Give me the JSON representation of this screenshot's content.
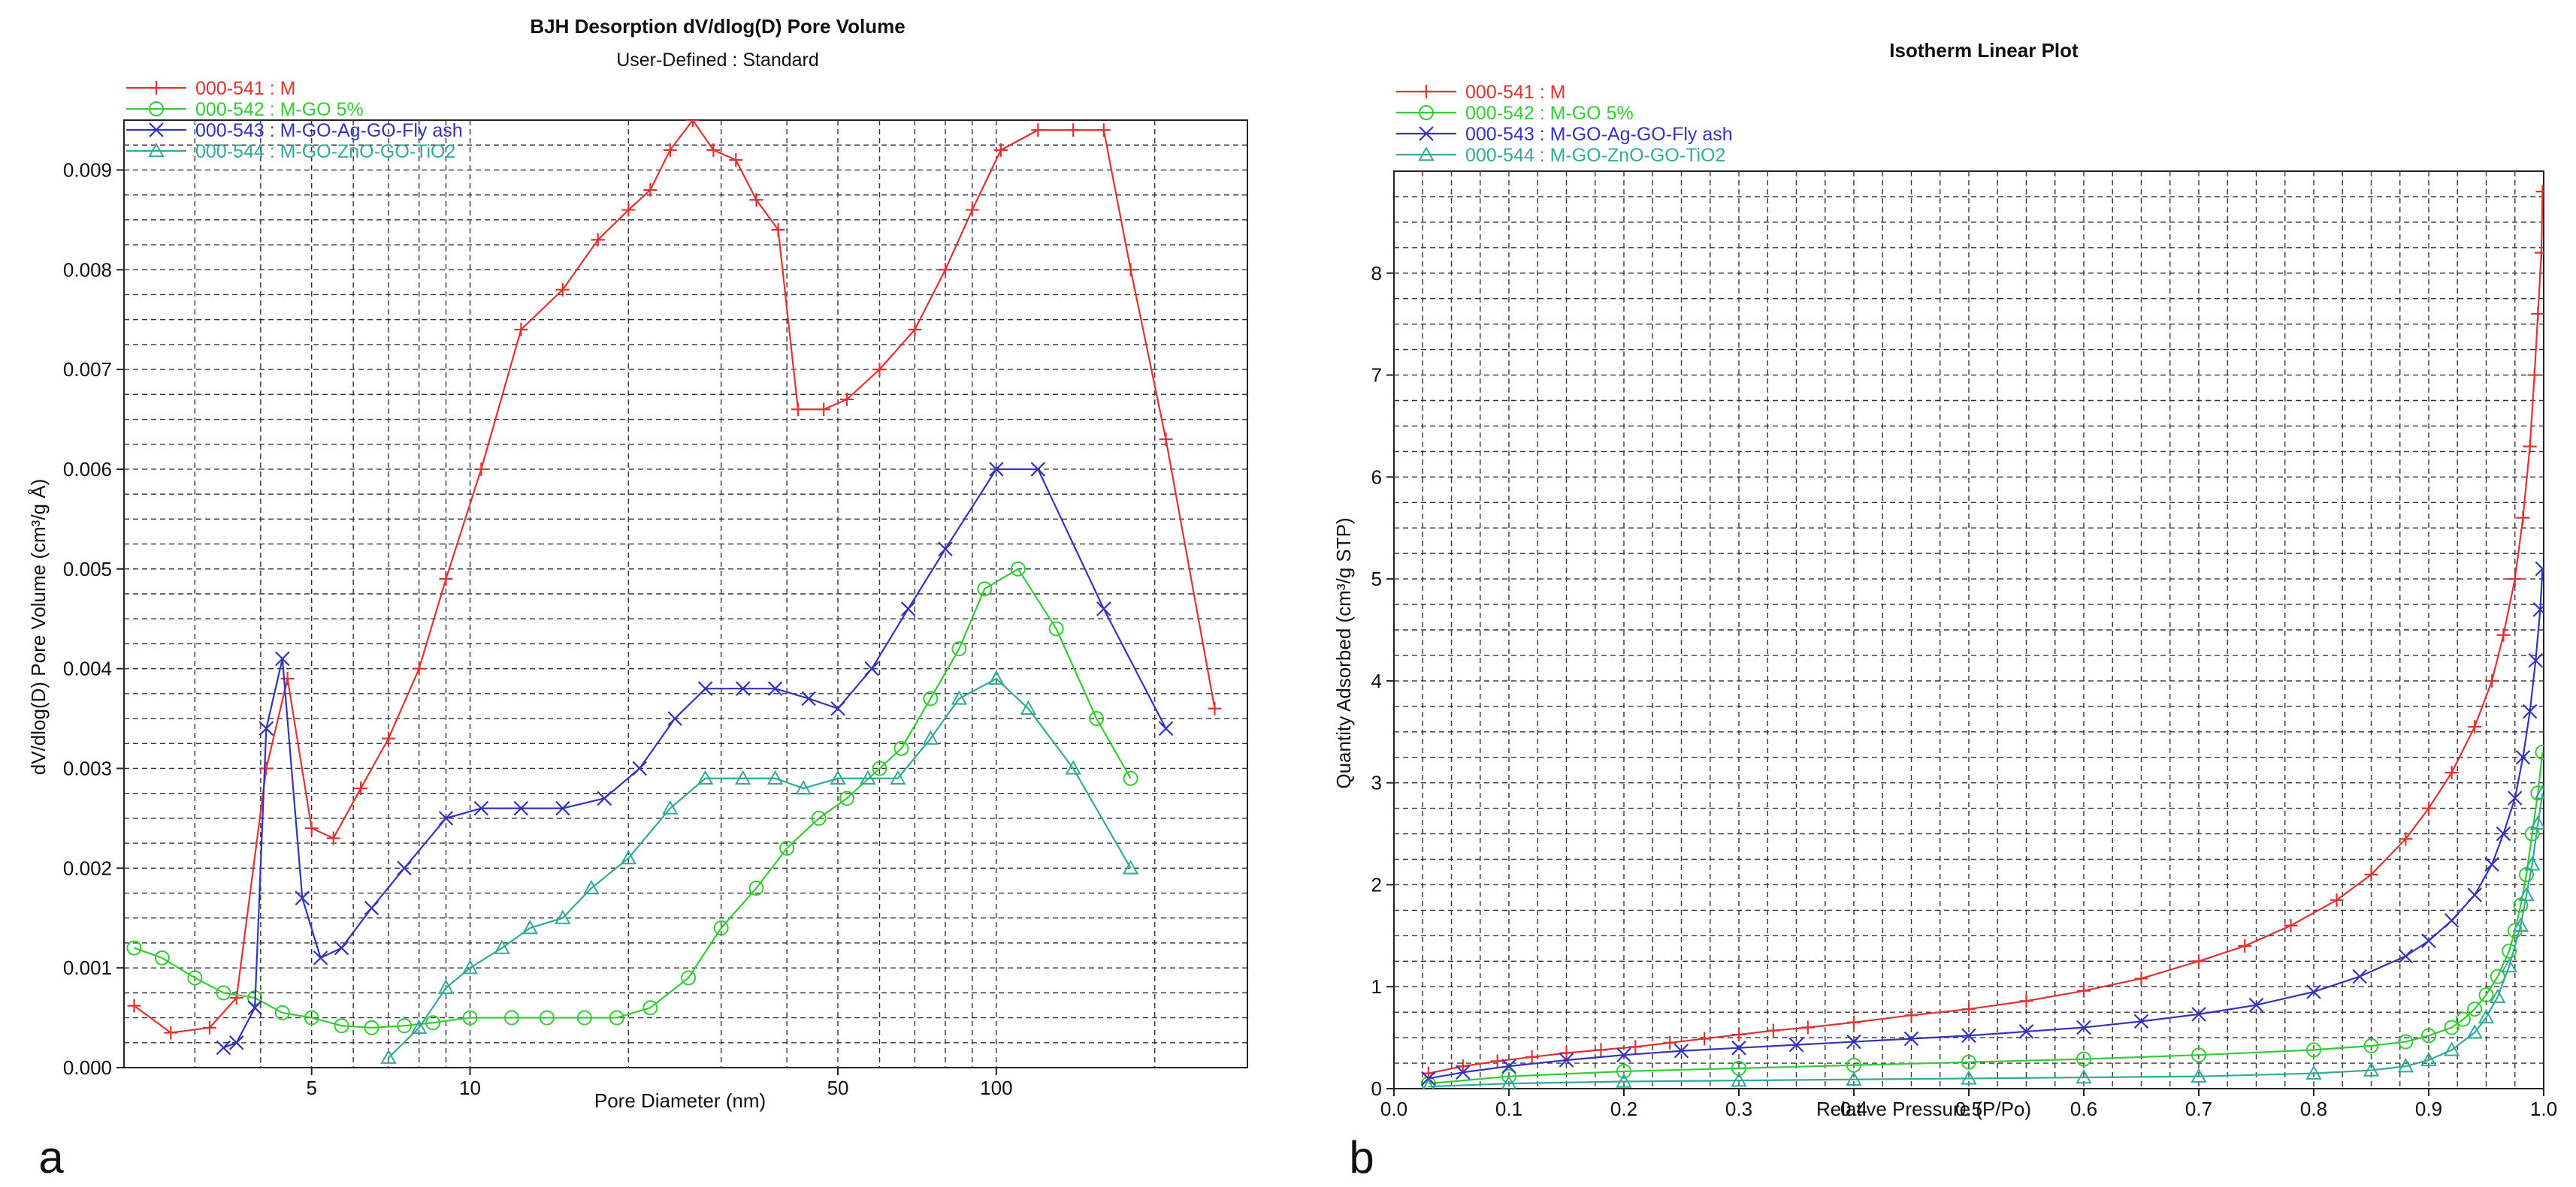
{
  "chart_data": [
    {
      "type": "line",
      "panel_label": "a",
      "title": "BJH Desorption dV/dlog(D) Pore Volume",
      "subtitle": "User-Defined : Standard",
      "xlabel": "Pore Diameter (nm)",
      "ylabel": "dV/dlog(D) Pore Volume (cm³/g Å)",
      "xscale": "log",
      "xlim": [
        2.2,
        300
      ],
      "ylim": [
        0,
        0.0095
      ],
      "x_ticks": [
        5,
        10,
        50,
        100
      ],
      "x_tick_labels": [
        "5",
        "10",
        "50",
        "100"
      ],
      "y_ticks": [
        0,
        0.001,
        0.002,
        0.003,
        0.004,
        0.005,
        0.006,
        0.007,
        0.008,
        0.009
      ],
      "y_tick_labels": [
        "0.000",
        "0.001",
        "0.002",
        "0.003",
        "0.004",
        "0.005",
        "0.006",
        "0.007",
        "0.008",
        "0.009"
      ],
      "grid": true,
      "legend_position": "top-left",
      "series": [
        {
          "name": "000-541 : M",
          "color": "#dd3333",
          "marker": "plus",
          "x": [
            2.3,
            2.7,
            3.2,
            3.6,
            4.1,
            4.5,
            5.0,
            5.5,
            6.2,
            7.0,
            8.0,
            9.0,
            10.5,
            12.5,
            15.0,
            17.5,
            20.0,
            22.0,
            24.0,
            26.5,
            29.0,
            32.0,
            35.0,
            38.5,
            42.0,
            47.0,
            52.0,
            60.0,
            70.0,
            80.0,
            90.0,
            102.0,
            120.0,
            140.0,
            160.0,
            180.0,
            210.0,
            260.0
          ],
          "y": [
            0.00062,
            0.00035,
            0.0004,
            0.0007,
            0.003,
            0.0039,
            0.0024,
            0.0023,
            0.0028,
            0.0033,
            0.004,
            0.0049,
            0.006,
            0.0074,
            0.0078,
            0.0083,
            0.0086,
            0.0088,
            0.0092,
            0.0095,
            0.0092,
            0.0091,
            0.0087,
            0.0084,
            0.0066,
            0.0066,
            0.0067,
            0.007,
            0.0074,
            0.008,
            0.0086,
            0.0092,
            0.0094,
            0.0094,
            0.0094,
            0.008,
            0.0063,
            0.0036
          ]
        },
        {
          "name": "000-542 : M-GO 5%",
          "color": "#33cc33",
          "marker": "circle",
          "x": [
            2.3,
            2.6,
            3.0,
            3.4,
            3.9,
            4.4,
            5.0,
            5.7,
            6.5,
            7.5,
            8.5,
            10.0,
            12.0,
            14.0,
            16.5,
            19.0,
            22.0,
            26.0,
            30.0,
            35.0,
            40.0,
            46.0,
            52.0,
            60.0,
            66.0,
            75.0,
            85.0,
            95.0,
            110.0,
            130.0,
            155.0,
            180.0
          ],
          "y": [
            0.0012,
            0.0011,
            0.0009,
            0.00075,
            0.0007,
            0.00055,
            0.0005,
            0.00042,
            0.0004,
            0.00042,
            0.00045,
            0.0005,
            0.0005,
            0.0005,
            0.0005,
            0.0005,
            0.0006,
            0.0009,
            0.0014,
            0.0018,
            0.0022,
            0.0025,
            0.0027,
            0.003,
            0.0032,
            0.0037,
            0.0042,
            0.0048,
            0.005,
            0.0044,
            0.0035,
            0.0029
          ]
        },
        {
          "name": "000-543 : M-GO-Ag-GO-Fly ash",
          "color": "#3333bb",
          "marker": "x",
          "x": [
            3.4,
            3.6,
            3.9,
            4.1,
            4.4,
            4.8,
            5.2,
            5.7,
            6.5,
            7.5,
            9.0,
            10.5,
            12.5,
            15.0,
            18.0,
            21.0,
            24.5,
            28.0,
            33.0,
            38.0,
            44.0,
            50.0,
            58.0,
            68.0,
            80.0,
            100.0,
            120.0,
            160.0,
            210.0
          ],
          "y": [
            0.0002,
            0.00025,
            0.0006,
            0.0034,
            0.0041,
            0.0017,
            0.0011,
            0.0012,
            0.0016,
            0.002,
            0.0025,
            0.0026,
            0.0026,
            0.0026,
            0.0027,
            0.003,
            0.0035,
            0.0038,
            0.0038,
            0.0038,
            0.0037,
            0.0036,
            0.004,
            0.0046,
            0.0052,
            0.006,
            0.006,
            0.0046,
            0.0034
          ]
        },
        {
          "name": "000-544 : M-GO-ZnO-GO-TiO2",
          "color": "#33aa99",
          "marker": "triangle",
          "x": [
            7.0,
            8.0,
            9.0,
            10.0,
            11.5,
            13.0,
            15.0,
            17.0,
            20.0,
            24.0,
            28.0,
            33.0,
            38.0,
            43.0,
            50.0,
            57.0,
            65.0,
            75.0,
            85.0,
            100.0,
            115.0,
            140.0,
            180.0
          ],
          "y": [
            0.0001,
            0.0004,
            0.0008,
            0.001,
            0.0012,
            0.0014,
            0.0015,
            0.0018,
            0.0021,
            0.0026,
            0.0029,
            0.0029,
            0.0029,
            0.0028,
            0.0029,
            0.0029,
            0.0029,
            0.0033,
            0.0037,
            0.0039,
            0.0036,
            0.003,
            0.002
          ]
        }
      ]
    },
    {
      "type": "line",
      "panel_label": "b",
      "title": "Isotherm Linear Plot",
      "xlabel": "Relative Pressure (P/Po)",
      "ylabel": "Quantity Adsorbed (cm³/g STP)",
      "xlim": [
        0,
        1.0
      ],
      "ylim": [
        0,
        9
      ],
      "x_ticks": [
        0.0,
        0.1,
        0.2,
        0.3,
        0.4,
        0.5,
        0.6,
        0.7,
        0.8,
        0.9,
        1.0
      ],
      "x_tick_labels": [
        "0.0",
        "0.1",
        "0.2",
        "0.3",
        "0.4",
        "0.5",
        "0.6",
        "0.7",
        "0.8",
        "0.9",
        "1.0"
      ],
      "y_ticks": [
        0,
        1,
        2,
        3,
        4,
        5,
        6,
        7,
        8
      ],
      "y_tick_labels": [
        "0",
        "1",
        "2",
        "3",
        "4",
        "5",
        "6",
        "7",
        "8"
      ],
      "grid": true,
      "legend_position": "top-left",
      "series": [
        {
          "name": "000-541 : M",
          "color": "#dd3333",
          "marker": "plus",
          "x": [
            0.03,
            0.06,
            0.09,
            0.12,
            0.15,
            0.18,
            0.21,
            0.24,
            0.27,
            0.3,
            0.33,
            0.36,
            0.4,
            0.45,
            0.5,
            0.55,
            0.6,
            0.65,
            0.7,
            0.74,
            0.78,
            0.82,
            0.85,
            0.88,
            0.9,
            0.92,
            0.94,
            0.955,
            0.965,
            0.975,
            0.982,
            0.988,
            0.992,
            0.995,
            0.998,
            0.999
          ],
          "y": [
            0.15,
            0.22,
            0.27,
            0.31,
            0.35,
            0.38,
            0.41,
            0.45,
            0.49,
            0.53,
            0.57,
            0.6,
            0.65,
            0.72,
            0.78,
            0.86,
            0.96,
            1.08,
            1.25,
            1.4,
            1.6,
            1.85,
            2.1,
            2.45,
            2.75,
            3.1,
            3.55,
            4.0,
            4.45,
            5.0,
            5.6,
            6.3,
            7.0,
            7.6,
            8.2,
            8.8
          ]
        },
        {
          "name": "000-542 : M-GO 5%",
          "color": "#33cc33",
          "marker": "circle",
          "x": [
            0.03,
            0.1,
            0.2,
            0.3,
            0.4,
            0.5,
            0.6,
            0.7,
            0.8,
            0.85,
            0.88,
            0.9,
            0.92,
            0.93,
            0.94,
            0.95,
            0.96,
            0.97,
            0.975,
            0.98,
            0.985,
            0.99,
            0.995,
            0.999
          ],
          "y": [
            0.05,
            0.12,
            0.17,
            0.2,
            0.23,
            0.26,
            0.29,
            0.33,
            0.38,
            0.42,
            0.46,
            0.52,
            0.6,
            0.68,
            0.78,
            0.92,
            1.1,
            1.35,
            1.55,
            1.8,
            2.1,
            2.5,
            2.9,
            3.3
          ]
        },
        {
          "name": "000-543 : M-GO-Ag-GO-Fly ash",
          "color": "#3333bb",
          "marker": "x",
          "x": [
            0.03,
            0.06,
            0.1,
            0.15,
            0.2,
            0.25,
            0.3,
            0.35,
            0.4,
            0.45,
            0.5,
            0.55,
            0.6,
            0.65,
            0.7,
            0.75,
            0.8,
            0.84,
            0.88,
            0.9,
            0.92,
            0.94,
            0.955,
            0.965,
            0.975,
            0.982,
            0.988,
            0.993,
            0.997,
            0.999
          ],
          "y": [
            0.1,
            0.16,
            0.22,
            0.28,
            0.33,
            0.37,
            0.4,
            0.43,
            0.46,
            0.49,
            0.52,
            0.56,
            0.6,
            0.66,
            0.73,
            0.82,
            0.95,
            1.1,
            1.3,
            1.45,
            1.65,
            1.9,
            2.2,
            2.5,
            2.85,
            3.25,
            3.7,
            4.2,
            4.7,
            5.1
          ]
        },
        {
          "name": "000-544 : M-GO-ZnO-GO-TiO2",
          "color": "#33aa99",
          "marker": "triangle",
          "x": [
            0.03,
            0.1,
            0.2,
            0.3,
            0.4,
            0.5,
            0.6,
            0.7,
            0.8,
            0.85,
            0.88,
            0.9,
            0.92,
            0.94,
            0.95,
            0.96,
            0.97,
            0.98,
            0.985,
            0.99,
            0.995,
            0.999
          ],
          "y": [
            0.02,
            0.05,
            0.07,
            0.08,
            0.09,
            0.1,
            0.11,
            0.12,
            0.15,
            0.18,
            0.22,
            0.28,
            0.38,
            0.55,
            0.7,
            0.9,
            1.2,
            1.6,
            1.9,
            2.2,
            2.6,
            2.9
          ]
        }
      ]
    }
  ]
}
